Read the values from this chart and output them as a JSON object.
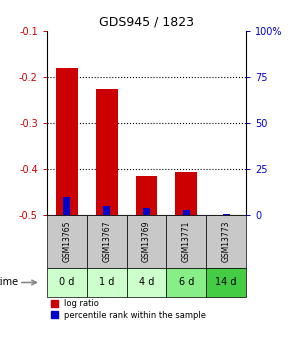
{
  "title": "GDS945 / 1823",
  "categories": [
    "GSM13765",
    "GSM13767",
    "GSM13769",
    "GSM13771",
    "GSM13773"
  ],
  "time_labels": [
    "0 d",
    "1 d",
    "4 d",
    "6 d",
    "14 d"
  ],
  "log_ratio": [
    -0.18,
    -0.225,
    -0.415,
    -0.405,
    -0.5
  ],
  "percentile_rank": [
    10,
    5,
    4,
    3,
    0.5
  ],
  "log_ratio_color": "#cc0000",
  "percentile_color": "#0000cc",
  "ylim": [
    -0.5,
    -0.1
  ],
  "y2lim": [
    0,
    100
  ],
  "yticks": [
    -0.5,
    -0.4,
    -0.3,
    -0.2,
    -0.1
  ],
  "y2ticks": [
    0,
    25,
    50,
    75,
    100
  ],
  "bar_width": 0.55,
  "perc_bar_width": 0.18,
  "time_cell_colors": [
    "#ccffcc",
    "#ccffcc",
    "#ccffcc",
    "#88ee88",
    "#44cc44"
  ],
  "gsm_cell_color": "#c8c8c8",
  "background_color": "#ffffff",
  "figsize": [
    2.93,
    3.45
  ],
  "dpi": 100
}
